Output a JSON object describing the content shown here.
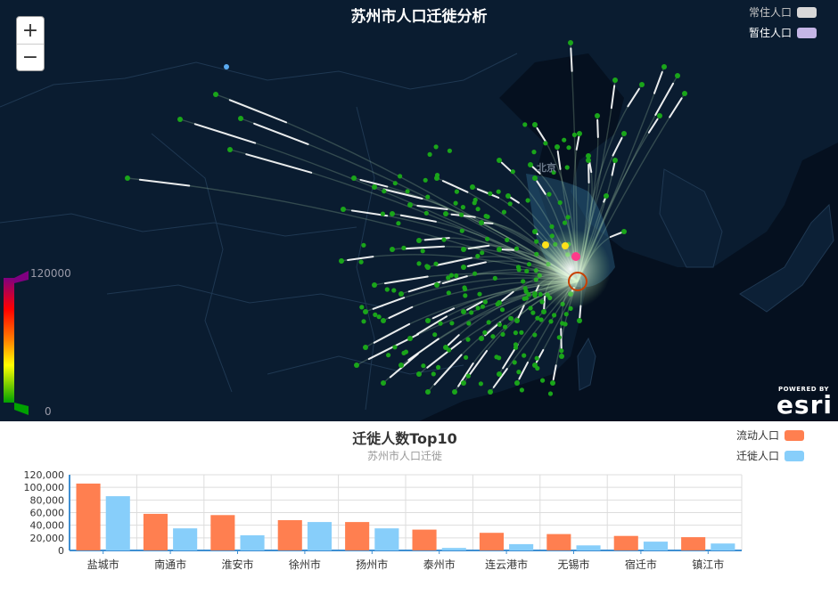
{
  "map": {
    "title": "苏州市人口迁徙分析",
    "zoom_in_label": "+",
    "zoom_out_label": "−",
    "legend": [
      {
        "label": "常住人口",
        "color": "#d8d8d8",
        "text_color": "#c8c8c8"
      },
      {
        "label": "暂住人口",
        "color": "#c5b6e6",
        "text_color": "#ffffff"
      }
    ],
    "city_label": "北京",
    "ramp": {
      "max_label": "120000",
      "min_label": "0",
      "colors": [
        "#800080",
        "#ff0000",
        "#ff8000",
        "#ffff00",
        "#00a000"
      ]
    },
    "logo": {
      "powered_by": "POWERED BY",
      "wordmark": "esri"
    },
    "colors": {
      "land": "#081a2f",
      "sea": "#05101f",
      "flow": "#ffffff",
      "origin": "#1aa51a",
      "target_ring": "#c84000"
    }
  },
  "chart": {
    "title": "迁徙人数Top10",
    "subtitle": "苏州市人口迁徙",
    "legend": [
      {
        "label": "流动人口",
        "color": "#ff7f50"
      },
      {
        "label": "迁徙人口",
        "color": "#87cefa"
      }
    ]
  },
  "chart_data": {
    "type": "bar",
    "title": "迁徙人数Top10",
    "subtitle": "苏州市人口迁徙",
    "categories": [
      "盐城市",
      "南通市",
      "淮安市",
      "徐州市",
      "扬州市",
      "泰州市",
      "连云港市",
      "无锡市",
      "宿迁市",
      "镇江市"
    ],
    "series": [
      {
        "name": "流动人口",
        "color": "#ff7f50",
        "values": [
          106000,
          58000,
          56000,
          48000,
          45000,
          33000,
          28000,
          26000,
          23000,
          21000
        ]
      },
      {
        "name": "迁徙人口",
        "color": "#87cefa",
        "values": [
          86000,
          35000,
          24000,
          45000,
          35000,
          4000,
          10000,
          8000,
          14000,
          11000
        ]
      }
    ],
    "yticks": [
      "0",
      "20,000",
      "40,000",
      "60,000",
      "80,000",
      "100,000",
      "120,000"
    ],
    "ylim": [
      0,
      120000
    ],
    "grid": true,
    "legend_position": "top-right"
  }
}
